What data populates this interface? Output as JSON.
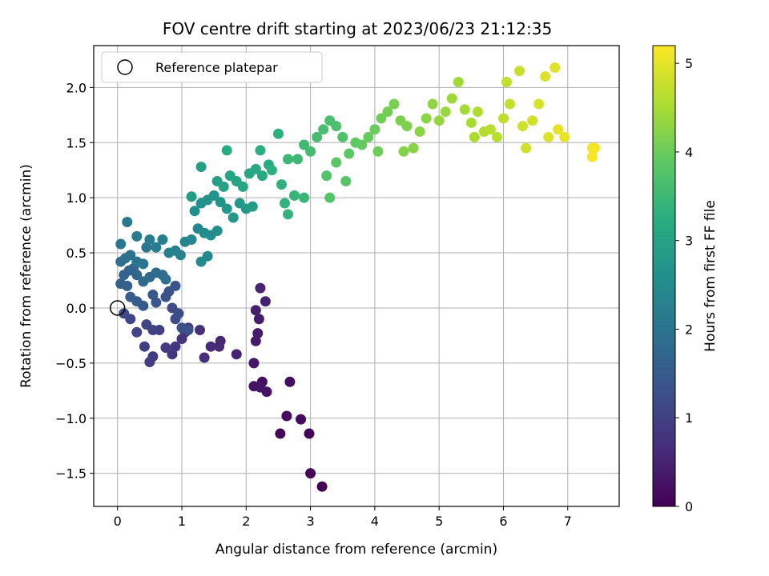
{
  "chart_data": {
    "type": "scatter",
    "title": "FOV centre drift starting at 2023/06/23 21:12:35",
    "xlabel": "Angular distance from reference (arcmin)",
    "ylabel": "Rotation from reference (arcmin)",
    "xlim": [
      -0.37,
      7.8
    ],
    "ylim": [
      -1.8,
      2.38
    ],
    "xticks": [
      0,
      1,
      2,
      3,
      4,
      5,
      6,
      7
    ],
    "yticks": [
      -1.5,
      -1.0,
      -0.5,
      0.0,
      0.5,
      1.0,
      1.5,
      2.0
    ],
    "xtick_labels": [
      "0",
      "1",
      "2",
      "3",
      "4",
      "5",
      "6",
      "7"
    ],
    "ytick_labels": [
      "−1.5",
      "−1.0",
      "−0.5",
      "0.0",
      "0.5",
      "1.0",
      "1.5",
      "2.0"
    ],
    "grid": true,
    "legend": {
      "label": "Reference platepar",
      "placement": "top-left"
    },
    "reference_point": {
      "x": 0.0,
      "y": 0.0
    },
    "colorbar": {
      "label": "Hours from first FF file",
      "range": [
        0,
        5.2
      ],
      "ticks": [
        0,
        1,
        2,
        3,
        4,
        5
      ],
      "tick_labels": [
        "0",
        "1",
        "2",
        "3",
        "4",
        "5"
      ],
      "colormap": "viridis"
    },
    "points": [
      {
        "x": 3.18,
        "y": -1.62,
        "c": 0.0
      },
      {
        "x": 3.0,
        "y": -1.5,
        "c": 0.03
      },
      {
        "x": 2.98,
        "y": -1.14,
        "c": 0.06
      },
      {
        "x": 2.53,
        "y": -1.14,
        "c": 0.09
      },
      {
        "x": 2.85,
        "y": -1.01,
        "c": 0.12
      },
      {
        "x": 2.63,
        "y": -0.98,
        "c": 0.15
      },
      {
        "x": 2.68,
        "y": -0.67,
        "c": 0.18
      },
      {
        "x": 2.25,
        "y": -0.67,
        "c": 0.21
      },
      {
        "x": 2.32,
        "y": -0.76,
        "c": 0.24
      },
      {
        "x": 2.12,
        "y": -0.71,
        "c": 0.27
      },
      {
        "x": 2.22,
        "y": -0.72,
        "c": 0.3
      },
      {
        "x": 2.12,
        "y": -0.5,
        "c": 0.33
      },
      {
        "x": 2.15,
        "y": -0.3,
        "c": 0.36
      },
      {
        "x": 2.18,
        "y": -0.23,
        "c": 0.39
      },
      {
        "x": 2.2,
        "y": -0.1,
        "c": 0.42
      },
      {
        "x": 2.15,
        "y": -0.02,
        "c": 0.45
      },
      {
        "x": 2.3,
        "y": 0.06,
        "c": 0.48
      },
      {
        "x": 2.22,
        "y": 0.18,
        "c": 0.51
      },
      {
        "x": 1.85,
        "y": -0.42,
        "c": 0.54
      },
      {
        "x": 1.6,
        "y": -0.3,
        "c": 0.57
      },
      {
        "x": 1.58,
        "y": -0.35,
        "c": 0.6
      },
      {
        "x": 1.45,
        "y": -0.35,
        "c": 0.63
      },
      {
        "x": 1.35,
        "y": -0.45,
        "c": 0.66
      },
      {
        "x": 1.28,
        "y": -0.2,
        "c": 0.69
      },
      {
        "x": 1.1,
        "y": -0.18,
        "c": 0.72
      },
      {
        "x": 1.05,
        "y": -0.22,
        "c": 0.75
      },
      {
        "x": 1.0,
        "y": -0.28,
        "c": 0.78
      },
      {
        "x": 0.9,
        "y": -0.35,
        "c": 0.81
      },
      {
        "x": 0.85,
        "y": -0.42,
        "c": 0.84
      },
      {
        "x": 0.75,
        "y": -0.36,
        "c": 0.87
      },
      {
        "x": 0.55,
        "y": -0.44,
        "c": 0.9
      },
      {
        "x": 0.5,
        "y": -0.49,
        "c": 0.93
      },
      {
        "x": 0.42,
        "y": -0.35,
        "c": 0.96
      },
      {
        "x": 0.65,
        "y": -0.2,
        "c": 0.99
      },
      {
        "x": 0.55,
        "y": -0.2,
        "c": 1.02
      },
      {
        "x": 0.45,
        "y": -0.15,
        "c": 1.05
      },
      {
        "x": 0.3,
        "y": -0.22,
        "c": 1.08
      },
      {
        "x": 0.2,
        "y": -0.1,
        "c": 1.11
      },
      {
        "x": 0.1,
        "y": -0.05,
        "c": 1.14
      },
      {
        "x": 0.85,
        "y": 0.0,
        "c": 1.17
      },
      {
        "x": 0.9,
        "y": -0.1,
        "c": 1.2
      },
      {
        "x": 0.95,
        "y": -0.05,
        "c": 1.23
      },
      {
        "x": 1.0,
        "y": -0.18,
        "c": 1.26
      },
      {
        "x": 1.1,
        "y": -0.2,
        "c": 1.29
      },
      {
        "x": 0.75,
        "y": 0.1,
        "c": 1.32
      },
      {
        "x": 0.8,
        "y": 0.15,
        "c": 1.35
      },
      {
        "x": 0.9,
        "y": 0.2,
        "c": 1.38
      },
      {
        "x": 0.6,
        "y": 0.05,
        "c": 1.41
      },
      {
        "x": 0.55,
        "y": 0.12,
        "c": 1.44
      },
      {
        "x": 0.4,
        "y": 0.02,
        "c": 1.47
      },
      {
        "x": 0.3,
        "y": 0.06,
        "c": 1.5
      },
      {
        "x": 0.2,
        "y": 0.1,
        "c": 1.53
      },
      {
        "x": 0.15,
        "y": 0.2,
        "c": 1.56
      },
      {
        "x": 0.05,
        "y": 0.22,
        "c": 1.59
      },
      {
        "x": 0.1,
        "y": 0.3,
        "c": 1.62
      },
      {
        "x": 0.18,
        "y": 0.34,
        "c": 1.65
      },
      {
        "x": 0.25,
        "y": 0.36,
        "c": 1.68
      },
      {
        "x": 0.3,
        "y": 0.3,
        "c": 1.71
      },
      {
        "x": 0.4,
        "y": 0.24,
        "c": 1.74
      },
      {
        "x": 0.5,
        "y": 0.28,
        "c": 1.77
      },
      {
        "x": 0.6,
        "y": 0.32,
        "c": 1.8
      },
      {
        "x": 0.7,
        "y": 0.3,
        "c": 1.83
      },
      {
        "x": 0.75,
        "y": 0.26,
        "c": 1.86
      },
      {
        "x": 0.05,
        "y": 0.42,
        "c": 1.89
      },
      {
        "x": 0.12,
        "y": 0.45,
        "c": 1.92
      },
      {
        "x": 0.2,
        "y": 0.48,
        "c": 1.95
      },
      {
        "x": 0.3,
        "y": 0.42,
        "c": 1.98
      },
      {
        "x": 0.4,
        "y": 0.4,
        "c": 2.01
      },
      {
        "x": 0.45,
        "y": 0.55,
        "c": 2.04
      },
      {
        "x": 0.05,
        "y": 0.58,
        "c": 2.07
      },
      {
        "x": 0.15,
        "y": 0.78,
        "c": 2.1
      },
      {
        "x": 0.3,
        "y": 0.65,
        "c": 2.13
      },
      {
        "x": 0.5,
        "y": 0.62,
        "c": 2.16
      },
      {
        "x": 0.6,
        "y": 0.55,
        "c": 2.19
      },
      {
        "x": 0.7,
        "y": 0.62,
        "c": 2.22
      },
      {
        "x": 0.8,
        "y": 0.5,
        "c": 2.25
      },
      {
        "x": 0.9,
        "y": 0.52,
        "c": 2.28
      },
      {
        "x": 0.98,
        "y": 0.48,
        "c": 2.31
      },
      {
        "x": 1.05,
        "y": 0.6,
        "c": 2.34
      },
      {
        "x": 1.15,
        "y": 0.62,
        "c": 2.37
      },
      {
        "x": 1.25,
        "y": 0.72,
        "c": 2.4
      },
      {
        "x": 1.3,
        "y": 0.42,
        "c": 2.43
      },
      {
        "x": 1.4,
        "y": 0.47,
        "c": 2.46
      },
      {
        "x": 1.35,
        "y": 0.68,
        "c": 2.49
      },
      {
        "x": 1.45,
        "y": 0.66,
        "c": 2.52
      },
      {
        "x": 1.55,
        "y": 0.7,
        "c": 2.55
      },
      {
        "x": 1.2,
        "y": 0.88,
        "c": 2.58
      },
      {
        "x": 1.3,
        "y": 0.95,
        "c": 2.61
      },
      {
        "x": 1.4,
        "y": 0.98,
        "c": 2.64
      },
      {
        "x": 1.5,
        "y": 1.02,
        "c": 2.67
      },
      {
        "x": 1.6,
        "y": 0.96,
        "c": 2.7
      },
      {
        "x": 1.7,
        "y": 0.9,
        "c": 2.73
      },
      {
        "x": 1.8,
        "y": 0.82,
        "c": 2.76
      },
      {
        "x": 1.9,
        "y": 0.95,
        "c": 2.79
      },
      {
        "x": 2.0,
        "y": 0.9,
        "c": 2.82
      },
      {
        "x": 2.1,
        "y": 0.92,
        "c": 2.85
      },
      {
        "x": 1.15,
        "y": 1.01,
        "c": 2.88
      },
      {
        "x": 1.3,
        "y": 1.28,
        "c": 2.91
      },
      {
        "x": 1.55,
        "y": 1.15,
        "c": 2.94
      },
      {
        "x": 1.65,
        "y": 1.1,
        "c": 2.97
      },
      {
        "x": 1.75,
        "y": 1.2,
        "c": 3.0
      },
      {
        "x": 1.85,
        "y": 1.15,
        "c": 3.03
      },
      {
        "x": 1.95,
        "y": 1.1,
        "c": 3.06
      },
      {
        "x": 2.05,
        "y": 1.22,
        "c": 3.09
      },
      {
        "x": 2.15,
        "y": 1.26,
        "c": 3.12
      },
      {
        "x": 2.25,
        "y": 1.2,
        "c": 3.15
      },
      {
        "x": 2.35,
        "y": 1.3,
        "c": 3.18
      },
      {
        "x": 1.7,
        "y": 1.43,
        "c": 3.21
      },
      {
        "x": 2.22,
        "y": 1.43,
        "c": 3.24
      },
      {
        "x": 2.5,
        "y": 1.58,
        "c": 3.27
      },
      {
        "x": 2.4,
        "y": 1.25,
        "c": 3.3
      },
      {
        "x": 2.55,
        "y": 1.12,
        "c": 3.33
      },
      {
        "x": 2.6,
        "y": 0.95,
        "c": 3.36
      },
      {
        "x": 2.65,
        "y": 0.85,
        "c": 3.39
      },
      {
        "x": 2.75,
        "y": 1.02,
        "c": 3.42
      },
      {
        "x": 2.9,
        "y": 1.0,
        "c": 3.45
      },
      {
        "x": 2.65,
        "y": 1.35,
        "c": 3.48
      },
      {
        "x": 2.8,
        "y": 1.35,
        "c": 3.51
      },
      {
        "x": 2.9,
        "y": 1.48,
        "c": 3.54
      },
      {
        "x": 3.0,
        "y": 1.42,
        "c": 3.57
      },
      {
        "x": 3.1,
        "y": 1.55,
        "c": 3.6
      },
      {
        "x": 3.2,
        "y": 1.62,
        "c": 3.63
      },
      {
        "x": 3.3,
        "y": 1.7,
        "c": 3.66
      },
      {
        "x": 3.4,
        "y": 1.65,
        "c": 3.69
      },
      {
        "x": 3.5,
        "y": 1.55,
        "c": 3.72
      },
      {
        "x": 3.25,
        "y": 1.2,
        "c": 3.75
      },
      {
        "x": 3.3,
        "y": 1.0,
        "c": 3.78
      },
      {
        "x": 3.55,
        "y": 1.15,
        "c": 3.81
      },
      {
        "x": 3.4,
        "y": 1.32,
        "c": 3.84
      },
      {
        "x": 3.6,
        "y": 1.4,
        "c": 3.87
      },
      {
        "x": 3.7,
        "y": 1.5,
        "c": 3.9
      },
      {
        "x": 3.8,
        "y": 1.48,
        "c": 3.93
      },
      {
        "x": 3.9,
        "y": 1.55,
        "c": 3.96
      },
      {
        "x": 4.0,
        "y": 1.62,
        "c": 3.99
      },
      {
        "x": 4.05,
        "y": 1.42,
        "c": 4.02
      },
      {
        "x": 4.1,
        "y": 1.72,
        "c": 4.05
      },
      {
        "x": 4.2,
        "y": 1.78,
        "c": 4.08
      },
      {
        "x": 4.3,
        "y": 1.85,
        "c": 4.11
      },
      {
        "x": 4.4,
        "y": 1.7,
        "c": 4.14
      },
      {
        "x": 4.5,
        "y": 1.65,
        "c": 4.17
      },
      {
        "x": 4.45,
        "y": 1.42,
        "c": 4.2
      },
      {
        "x": 4.6,
        "y": 1.45,
        "c": 4.23
      },
      {
        "x": 4.7,
        "y": 1.6,
        "c": 4.26
      },
      {
        "x": 4.8,
        "y": 1.72,
        "c": 4.29
      },
      {
        "x": 4.9,
        "y": 1.85,
        "c": 4.32
      },
      {
        "x": 5.0,
        "y": 1.7,
        "c": 4.35
      },
      {
        "x": 5.1,
        "y": 1.78,
        "c": 4.38
      },
      {
        "x": 5.2,
        "y": 1.9,
        "c": 4.41
      },
      {
        "x": 5.3,
        "y": 2.05,
        "c": 4.44
      },
      {
        "x": 5.4,
        "y": 1.8,
        "c": 4.47
      },
      {
        "x": 5.5,
        "y": 1.68,
        "c": 4.5
      },
      {
        "x": 5.55,
        "y": 1.55,
        "c": 4.53
      },
      {
        "x": 5.6,
        "y": 1.78,
        "c": 4.56
      },
      {
        "x": 5.7,
        "y": 1.6,
        "c": 4.59
      },
      {
        "x": 5.8,
        "y": 1.62,
        "c": 4.62
      },
      {
        "x": 5.9,
        "y": 1.55,
        "c": 4.65
      },
      {
        "x": 6.0,
        "y": 1.72,
        "c": 4.68
      },
      {
        "x": 6.05,
        "y": 2.05,
        "c": 4.71
      },
      {
        "x": 6.1,
        "y": 1.85,
        "c": 4.74
      },
      {
        "x": 6.25,
        "y": 2.15,
        "c": 4.77
      },
      {
        "x": 6.3,
        "y": 1.65,
        "c": 4.8
      },
      {
        "x": 6.35,
        "y": 1.45,
        "c": 4.83
      },
      {
        "x": 6.45,
        "y": 1.7,
        "c": 4.86
      },
      {
        "x": 6.55,
        "y": 1.85,
        "c": 4.89
      },
      {
        "x": 6.65,
        "y": 2.1,
        "c": 4.92
      },
      {
        "x": 6.7,
        "y": 1.55,
        "c": 4.95
      },
      {
        "x": 6.8,
        "y": 2.18,
        "c": 4.98
      },
      {
        "x": 6.85,
        "y": 1.62,
        "c": 5.01
      },
      {
        "x": 6.95,
        "y": 1.55,
        "c": 5.04
      },
      {
        "x": 7.38,
        "y": 1.45,
        "c": 5.1
      },
      {
        "x": 7.42,
        "y": 1.45,
        "c": 5.13
      },
      {
        "x": 7.38,
        "y": 1.37,
        "c": 5.16
      }
    ]
  }
}
